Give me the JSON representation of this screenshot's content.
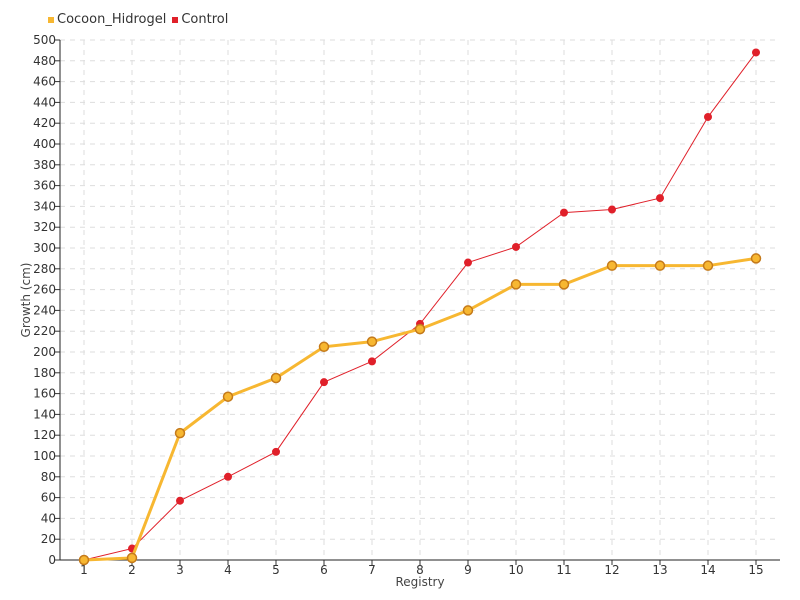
{
  "chart_data": {
    "type": "line",
    "title": "",
    "xlabel": "Registry",
    "ylabel": "Growth (cm)",
    "categories": [
      "1",
      "2",
      "3",
      "4",
      "5",
      "6",
      "7",
      "8",
      "9",
      "10",
      "11",
      "12",
      "13",
      "14",
      "15"
    ],
    "ylim": [
      0,
      500
    ],
    "yticks": [
      0,
      20,
      40,
      60,
      80,
      100,
      120,
      140,
      160,
      180,
      200,
      220,
      240,
      260,
      280,
      300,
      320,
      340,
      360,
      380,
      400,
      420,
      440,
      460,
      480,
      500
    ],
    "grid": true,
    "legend_position": "top-left",
    "series": [
      {
        "name": "Cocoon_Hidrogel",
        "color": "#f7b731",
        "values": [
          0,
          2,
          122,
          157,
          175,
          205,
          210,
          222,
          240,
          265,
          265,
          283,
          283,
          283,
          290
        ]
      },
      {
        "name": "Control",
        "color": "#e0202a",
        "values": [
          0,
          11,
          57,
          80,
          104,
          171,
          191,
          227,
          286,
          301,
          334,
          337,
          348,
          426,
          488
        ]
      }
    ]
  }
}
